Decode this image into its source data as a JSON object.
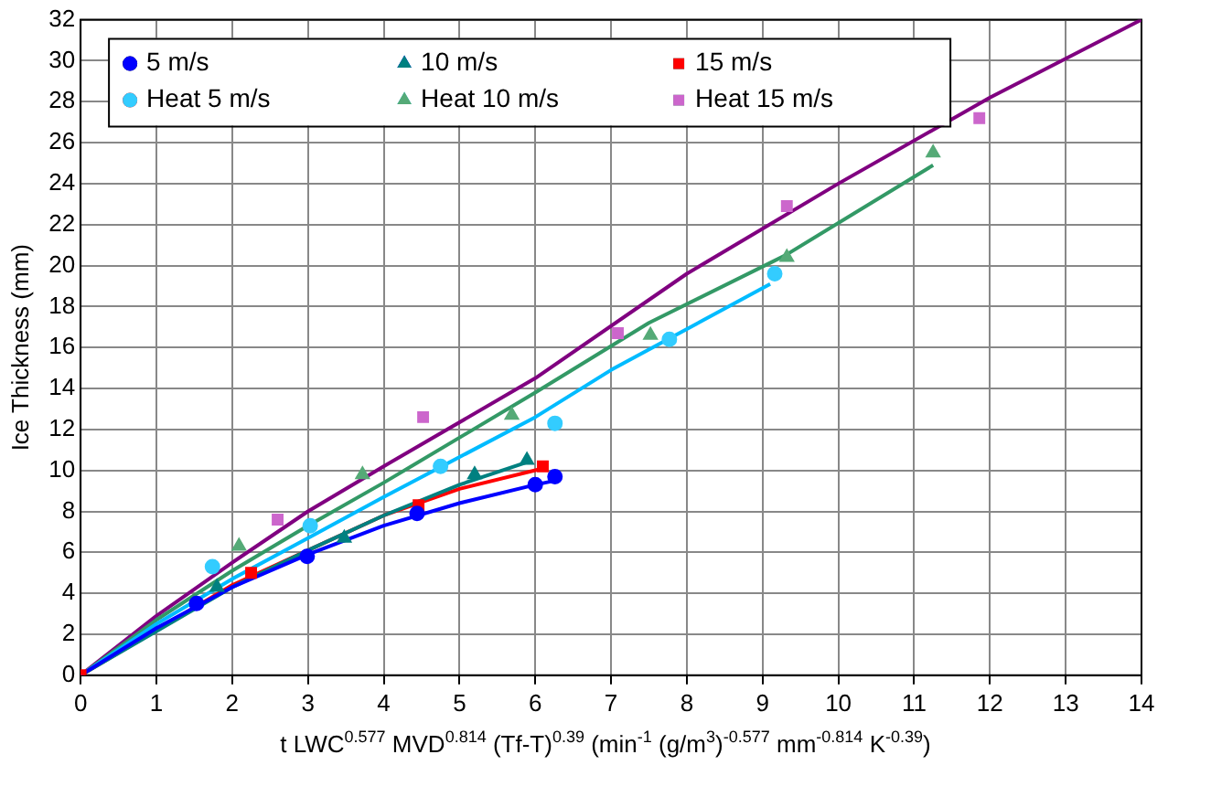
{
  "chart_data": {
    "type": "scatter",
    "xlabel": "t LWC$^{0.577}$ MVD$^{0.814}$ (Tf-T)$^{0.39}$ (min$^{-1}$ (g/m$^{3}$)$^{-0.577}$ mm$^{-0.814}$ K$^{-0.39}$)",
    "ylabel": "Ice Thickness (mm)",
    "xlim": [
      0,
      14
    ],
    "xticks": [
      0,
      1,
      2,
      3,
      4,
      5,
      6,
      7,
      8,
      9,
      10,
      11,
      12,
      13,
      14
    ],
    "ylim": [
      0,
      32
    ],
    "yticks": [
      0,
      2,
      4,
      6,
      8,
      10,
      12,
      14,
      16,
      18,
      20,
      22,
      24,
      26,
      28,
      30,
      32
    ],
    "grid": true,
    "legend": "top",
    "series": [
      {
        "name": "5 m/s",
        "color": "#0000ff",
        "marker": "circle",
        "x": [
          1.53,
          2.99,
          4.44,
          6.0,
          6.26
        ],
        "values": [
          3.5,
          5.8,
          7.9,
          9.3,
          9.7
        ]
      },
      {
        "name": "10 m/s",
        "color": "#008080",
        "marker": "triangle",
        "x": [
          1.8,
          3.48,
          5.2,
          5.89
        ],
        "values": [
          4.3,
          6.7,
          9.8,
          10.5
        ]
      },
      {
        "name": "15 m/s",
        "color": "#ff0000",
        "marker": "square",
        "x": [
          0,
          2.25,
          4.46,
          6.1
        ],
        "values": [
          0,
          5.0,
          8.3,
          10.2
        ]
      },
      {
        "name": "Heat 5 m/s",
        "color": "#33ccff",
        "marker": "circle",
        "x": [
          1.74,
          3.03,
          4.75,
          6.26,
          7.77,
          9.16
        ],
        "values": [
          5.3,
          7.3,
          10.2,
          12.3,
          16.4,
          19.6
        ]
      },
      {
        "name": "Heat 10 m/s",
        "color": "#55aa77",
        "marker": "triangle",
        "x": [
          2.09,
          3.72,
          5.69,
          7.52,
          9.32,
          11.25
        ],
        "values": [
          6.3,
          9.8,
          12.7,
          16.6,
          20.4,
          25.5
        ]
      },
      {
        "name": "Heat 15 m/s",
        "color": "#cc66cc",
        "marker": "square",
        "x": [
          2.6,
          4.52,
          7.09,
          9.32,
          11.86
        ],
        "values": [
          7.6,
          12.6,
          16.7,
          22.9,
          27.2
        ]
      },
      {
        "type": "line",
        "color": "#0000ff",
        "marker": "none",
        "x": [
          0,
          1,
          2,
          3,
          4,
          5,
          6,
          6.26
        ],
        "values": [
          0,
          2.3,
          4.3,
          5.9,
          7.3,
          8.4,
          9.3,
          9.5
        ]
      },
      {
        "type": "line",
        "color": "#008080",
        "marker": "none",
        "x": [
          0,
          2,
          3,
          4,
          5,
          5.89
        ],
        "values": [
          0,
          4.3,
          6.1,
          7.8,
          9.3,
          10.4
        ]
      },
      {
        "type": "line",
        "color": "#ff0000",
        "marker": "none",
        "x": [
          0,
          2,
          3,
          4,
          5,
          6.1
        ],
        "values": [
          0,
          4.4,
          6.1,
          7.8,
          9.1,
          10.1
        ]
      },
      {
        "type": "line",
        "color": "#00bbff",
        "marker": "none",
        "x": [
          0,
          1,
          2,
          3,
          4,
          6,
          7,
          9.1
        ],
        "values": [
          0,
          2.5,
          4.7,
          6.7,
          8.7,
          12.6,
          14.9,
          19.1
        ]
      },
      {
        "type": "line",
        "color": "#339966",
        "marker": "none",
        "x": [
          0,
          1,
          2,
          3,
          4,
          6,
          7.5,
          9.3,
          11.25
        ],
        "values": [
          0,
          2.7,
          5.1,
          7.3,
          9.4,
          13.8,
          17.2,
          20.5,
          24.9
        ]
      },
      {
        "type": "line",
        "color": "#800080",
        "marker": "none",
        "x": [
          0,
          1,
          2,
          3,
          4,
          6,
          8,
          10,
          12,
          14
        ],
        "values": [
          0,
          2.9,
          5.5,
          8.0,
          10.2,
          14.5,
          19.6,
          24.0,
          28.2,
          32
        ]
      }
    ]
  }
}
